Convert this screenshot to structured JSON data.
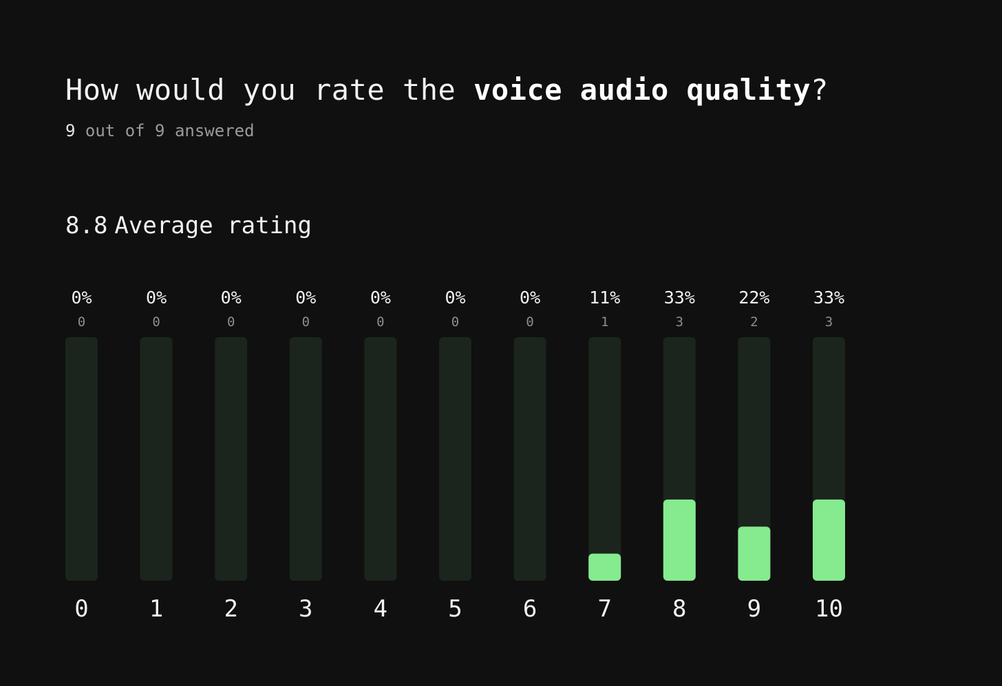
{
  "question": {
    "prefix": "How would you rate the ",
    "emphasis": "voice audio quality",
    "suffix": "?"
  },
  "answered": {
    "count": "9",
    "text": " out of 9 answered"
  },
  "average": {
    "value": "8.8",
    "label": "Average rating"
  },
  "colors": {
    "track": "#1b251d",
    "fill": "#86ea8e",
    "background": "#101010"
  },
  "chart_data": {
    "type": "bar",
    "categories": [
      "0",
      "1",
      "2",
      "3",
      "4",
      "5",
      "6",
      "7",
      "8",
      "9",
      "10"
    ],
    "values": [
      0,
      0,
      0,
      0,
      0,
      0,
      0,
      1,
      3,
      2,
      3
    ],
    "percent_labels": [
      "0%",
      "0%",
      "0%",
      "0%",
      "0%",
      "0%",
      "0%",
      "11%",
      "33%",
      "22%",
      "33%"
    ],
    "ylim": [
      0,
      9
    ],
    "grid": false
  }
}
